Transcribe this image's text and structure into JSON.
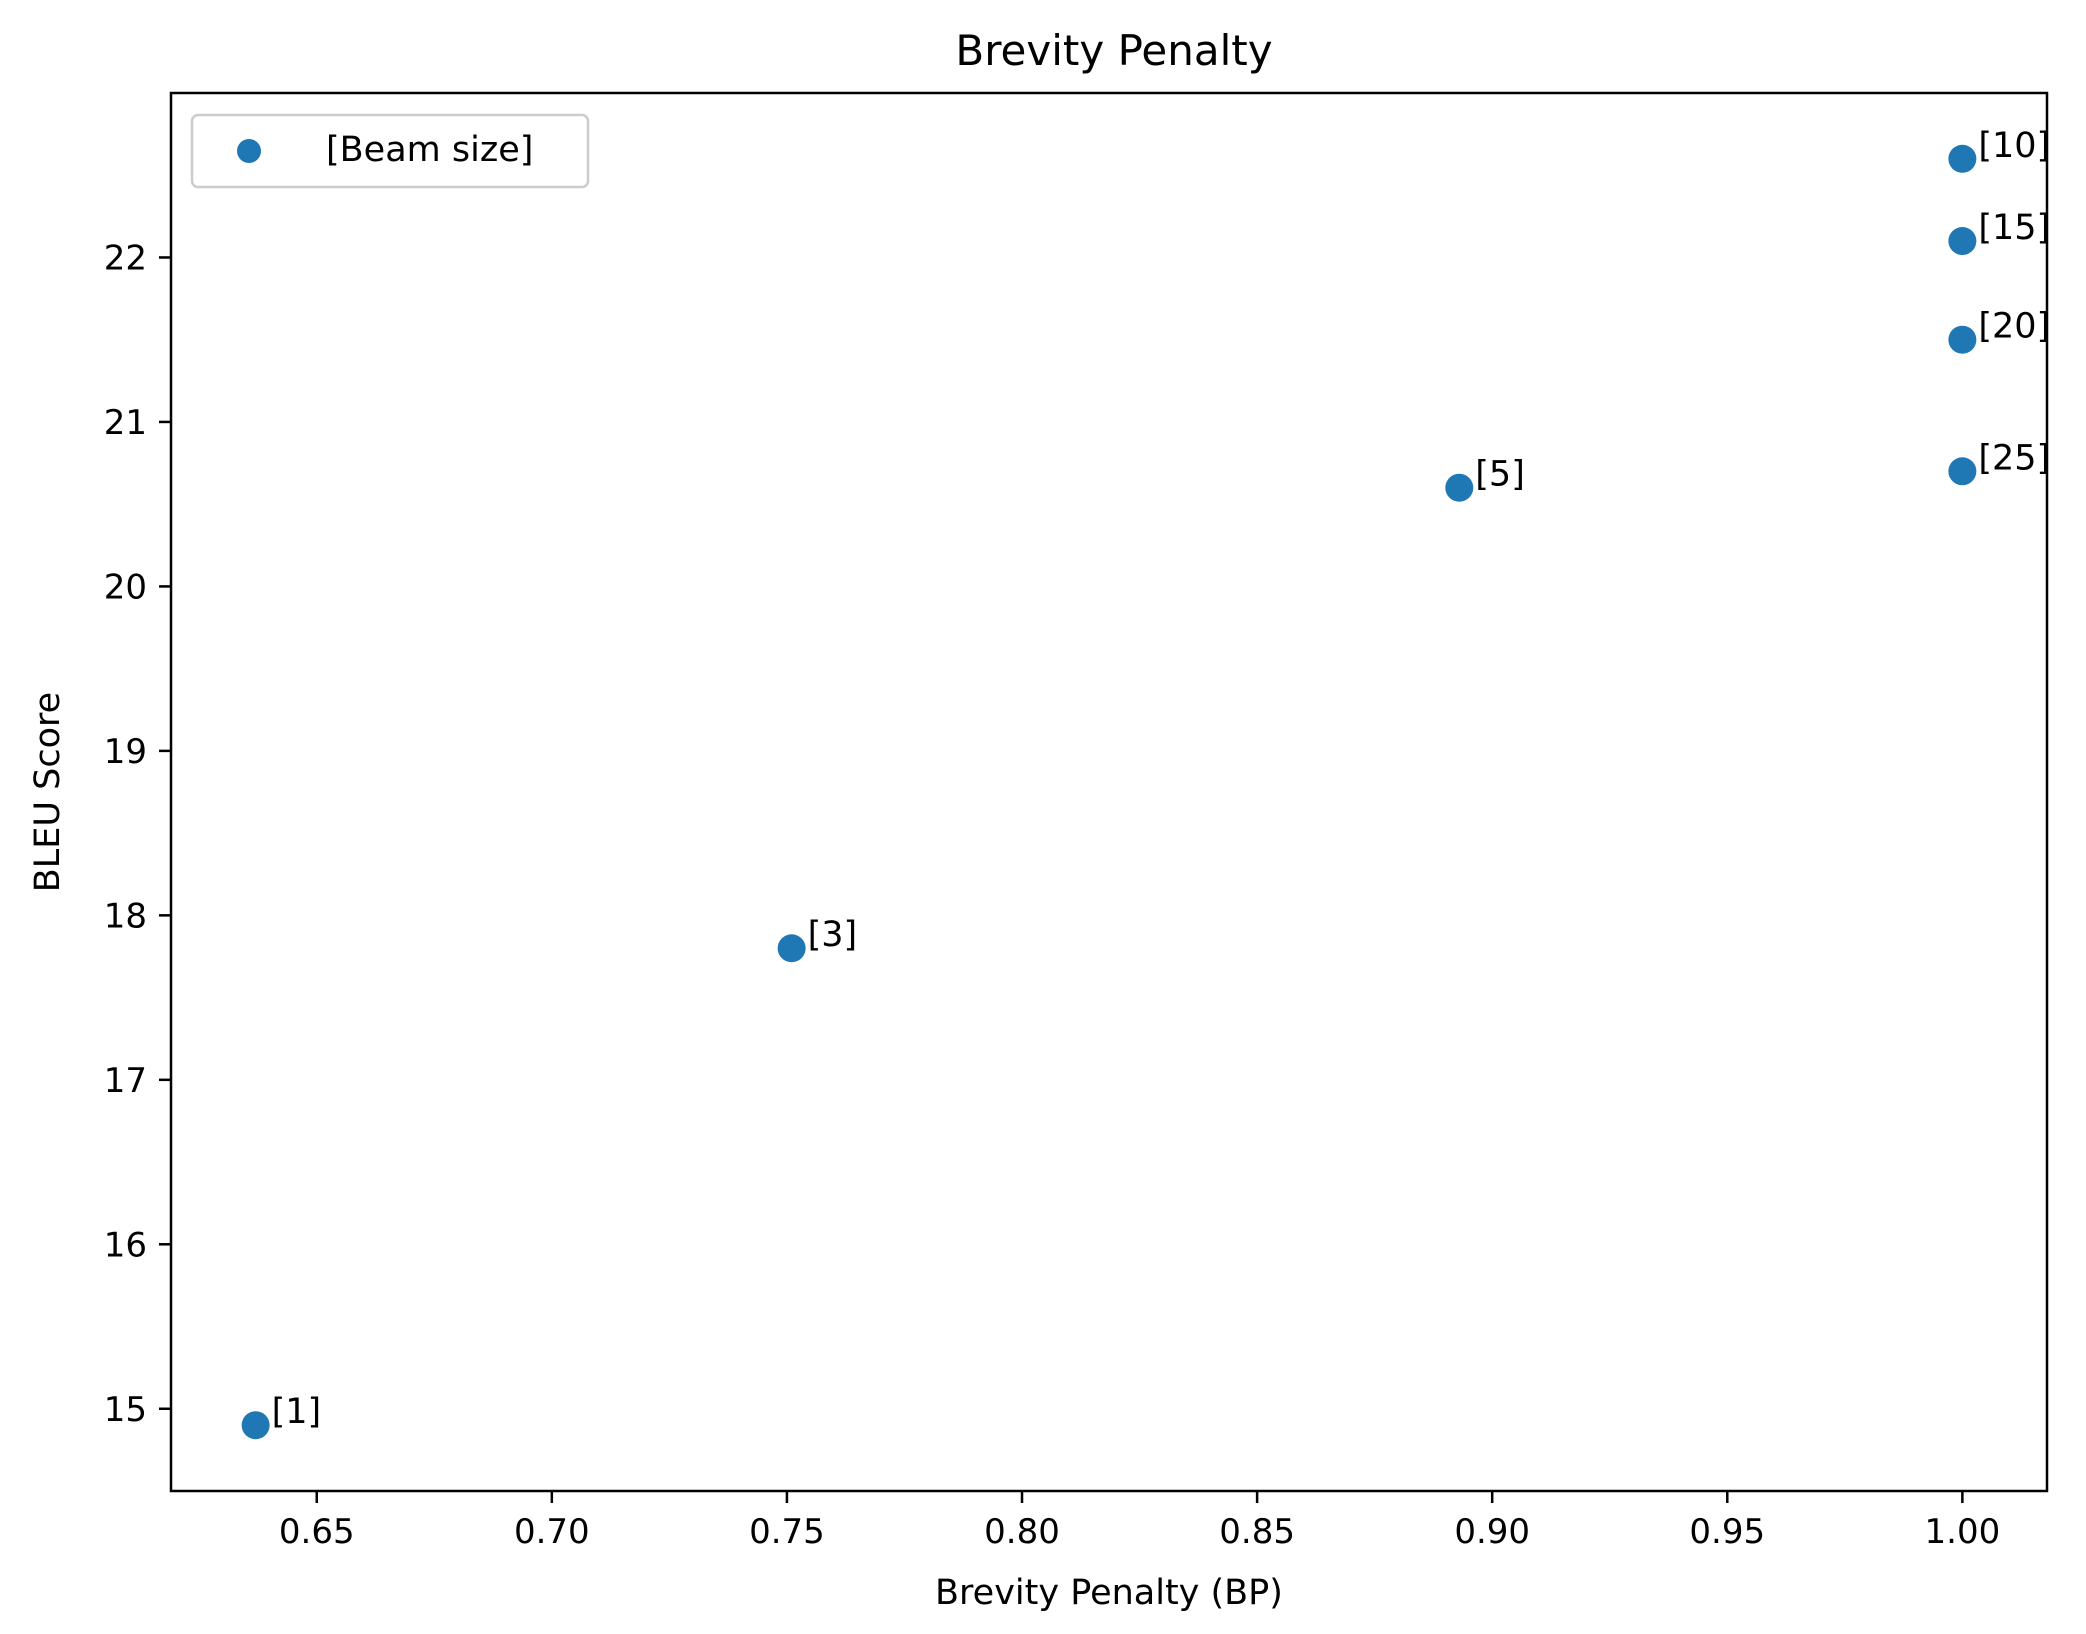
{
  "chart_data": {
    "type": "scatter",
    "title": "Brevity Penalty",
    "xlabel": "Brevity Penalty (BP)",
    "ylabel": "BLEU Score",
    "xlim": [
      0.619,
      1.018
    ],
    "ylim": [
      14.5,
      23.0
    ],
    "xticks": [
      {
        "value": 0.65,
        "label": "0.65"
      },
      {
        "value": 0.7,
        "label": "0.70"
      },
      {
        "value": 0.75,
        "label": "0.75"
      },
      {
        "value": 0.8,
        "label": "0.80"
      },
      {
        "value": 0.85,
        "label": "0.85"
      },
      {
        "value": 0.9,
        "label": "0.90"
      },
      {
        "value": 0.95,
        "label": "0.95"
      },
      {
        "value": 1.0,
        "label": "1.00"
      }
    ],
    "yticks": [
      {
        "value": 15,
        "label": "15"
      },
      {
        "value": 16,
        "label": "16"
      },
      {
        "value": 17,
        "label": "17"
      },
      {
        "value": 18,
        "label": "18"
      },
      {
        "value": 19,
        "label": "19"
      },
      {
        "value": 20,
        "label": "20"
      },
      {
        "value": 21,
        "label": "21"
      },
      {
        "value": 22,
        "label": "22"
      }
    ],
    "grid": false,
    "legend": {
      "position": "top-left",
      "entries": [
        "[Beam size]"
      ]
    },
    "series": [
      {
        "name": "[Beam size]",
        "color": "#1f77b4",
        "points": [
          {
            "x": 0.637,
            "y": 14.9,
            "label": "[1]"
          },
          {
            "x": 0.751,
            "y": 17.8,
            "label": "[3]"
          },
          {
            "x": 0.893,
            "y": 20.6,
            "label": "[5]"
          },
          {
            "x": 1.0,
            "y": 22.6,
            "label": "[10]"
          },
          {
            "x": 1.0,
            "y": 22.1,
            "label": "[15]"
          },
          {
            "x": 1.0,
            "y": 21.5,
            "label": "[20]"
          },
          {
            "x": 1.0,
            "y": 20.7,
            "label": "[25]"
          }
        ]
      }
    ]
  }
}
